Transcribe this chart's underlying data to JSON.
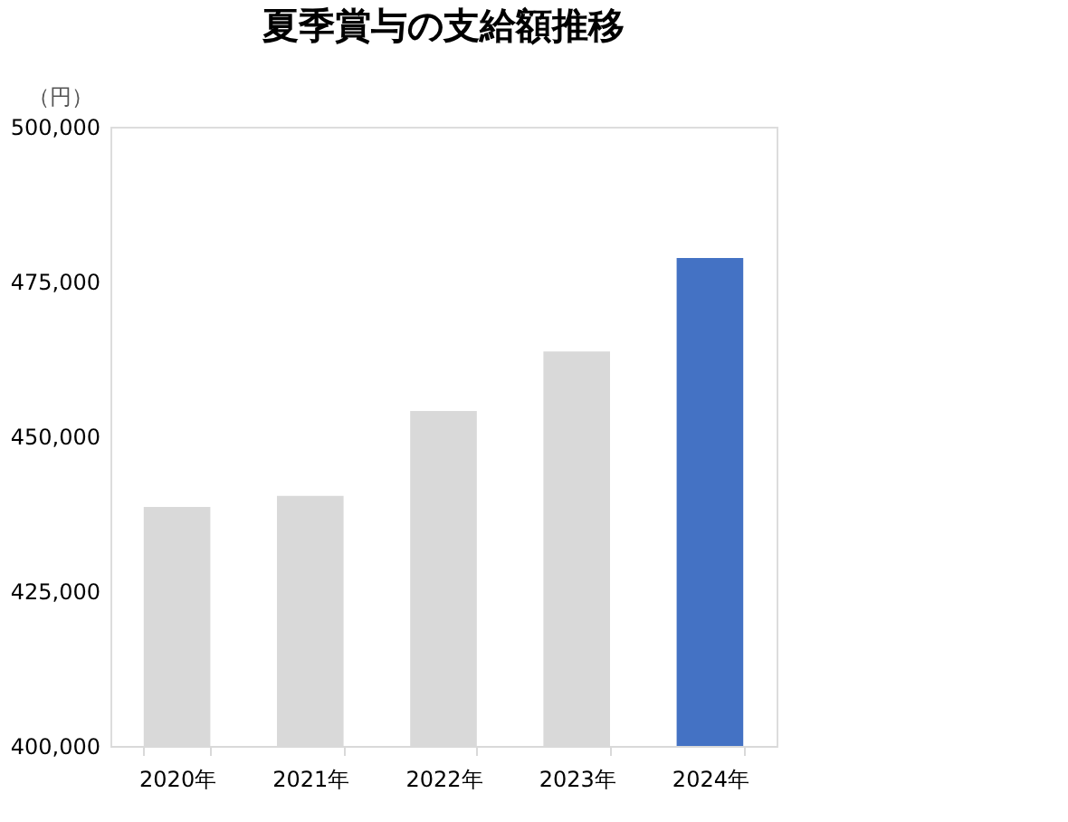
{
  "chart_data": {
    "type": "bar",
    "title": "夏季賞与の支給額推移",
    "ylabel": "（円）",
    "categories": [
      "2020年",
      "2021年",
      "2022年",
      "2023年",
      "2024年"
    ],
    "values": [
      438600,
      440400,
      454100,
      463700,
      478800
    ],
    "colors": [
      "#d9d9d9",
      "#d9d9d9",
      "#d9d9d9",
      "#d9d9d9",
      "#4472c4"
    ],
    "ylim": [
      400000,
      500000
    ],
    "yticks": [
      {
        "value": 400000,
        "label": "400,000"
      },
      {
        "value": 425000,
        "label": "425,000"
      },
      {
        "value": 450000,
        "label": "450,000"
      },
      {
        "value": 475000,
        "label": "475,000"
      },
      {
        "value": 500000,
        "label": "500,000"
      }
    ],
    "grid": false
  }
}
